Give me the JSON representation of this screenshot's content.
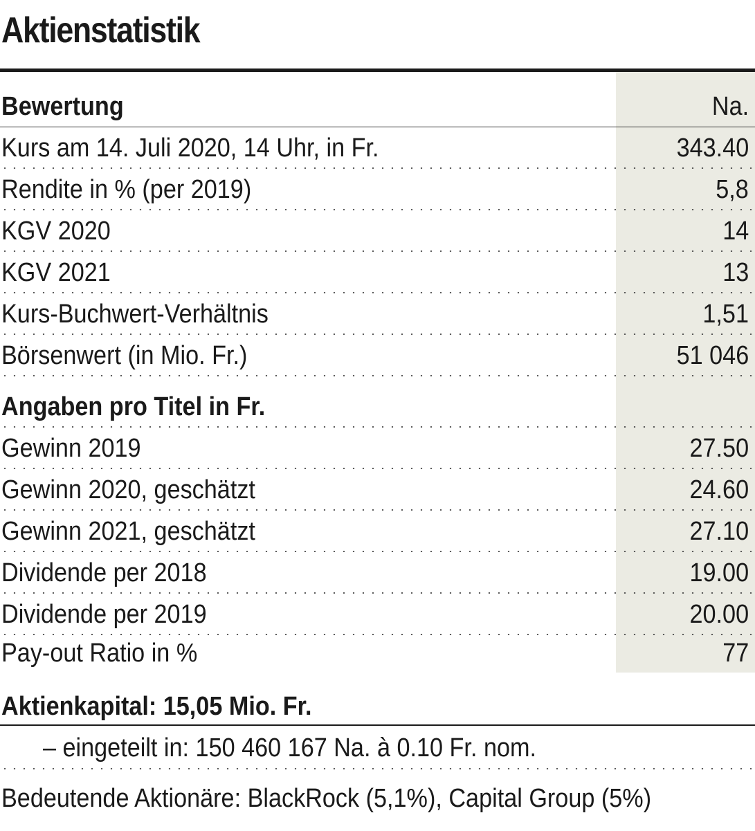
{
  "title": "Aktienstatistik",
  "bewertung": {
    "heading": "Bewertung",
    "column_label": "Na.",
    "rows": [
      {
        "label": "Kurs am 14. Juli 2020, 14 Uhr, in Fr.",
        "value": "343.40"
      },
      {
        "label": "Rendite in % (per 2019)",
        "value": "5,8"
      },
      {
        "label": "KGV 2020",
        "value": "14"
      },
      {
        "label": "KGV 2021",
        "value": "13"
      },
      {
        "label": "Kurs-Buchwert-Verhältnis",
        "value": "1,51"
      },
      {
        "label": "Börsenwert (in Mio. Fr.)",
        "value": "51 046"
      }
    ]
  },
  "angaben": {
    "heading": "Angaben pro Titel in Fr.",
    "rows": [
      {
        "label": "Gewinn 2019",
        "value": "27.50"
      },
      {
        "label": "Gewinn 2020, geschätzt",
        "value": "24.60"
      },
      {
        "label": "Gewinn 2021, geschätzt",
        "value": "27.10"
      },
      {
        "label": "Dividende per 2018",
        "value": "19.00"
      },
      {
        "label": "Dividende per 2019",
        "value": "20.00"
      },
      {
        "label": "Pay-out Ratio in %",
        "value": "77"
      }
    ]
  },
  "aktienkapital": {
    "heading": "Aktienkapital: 15,05 Mio. Fr.",
    "detail": "– eingeteilt in: 150 460 167 Na. à 0.10 Fr. nom."
  },
  "aktionaere": "Bedeutende Aktionäre: BlackRock (5,1%), Capital Group (5%)",
  "colors": {
    "text": "#1a1a1a",
    "column_shade": "#ebebe3"
  }
}
